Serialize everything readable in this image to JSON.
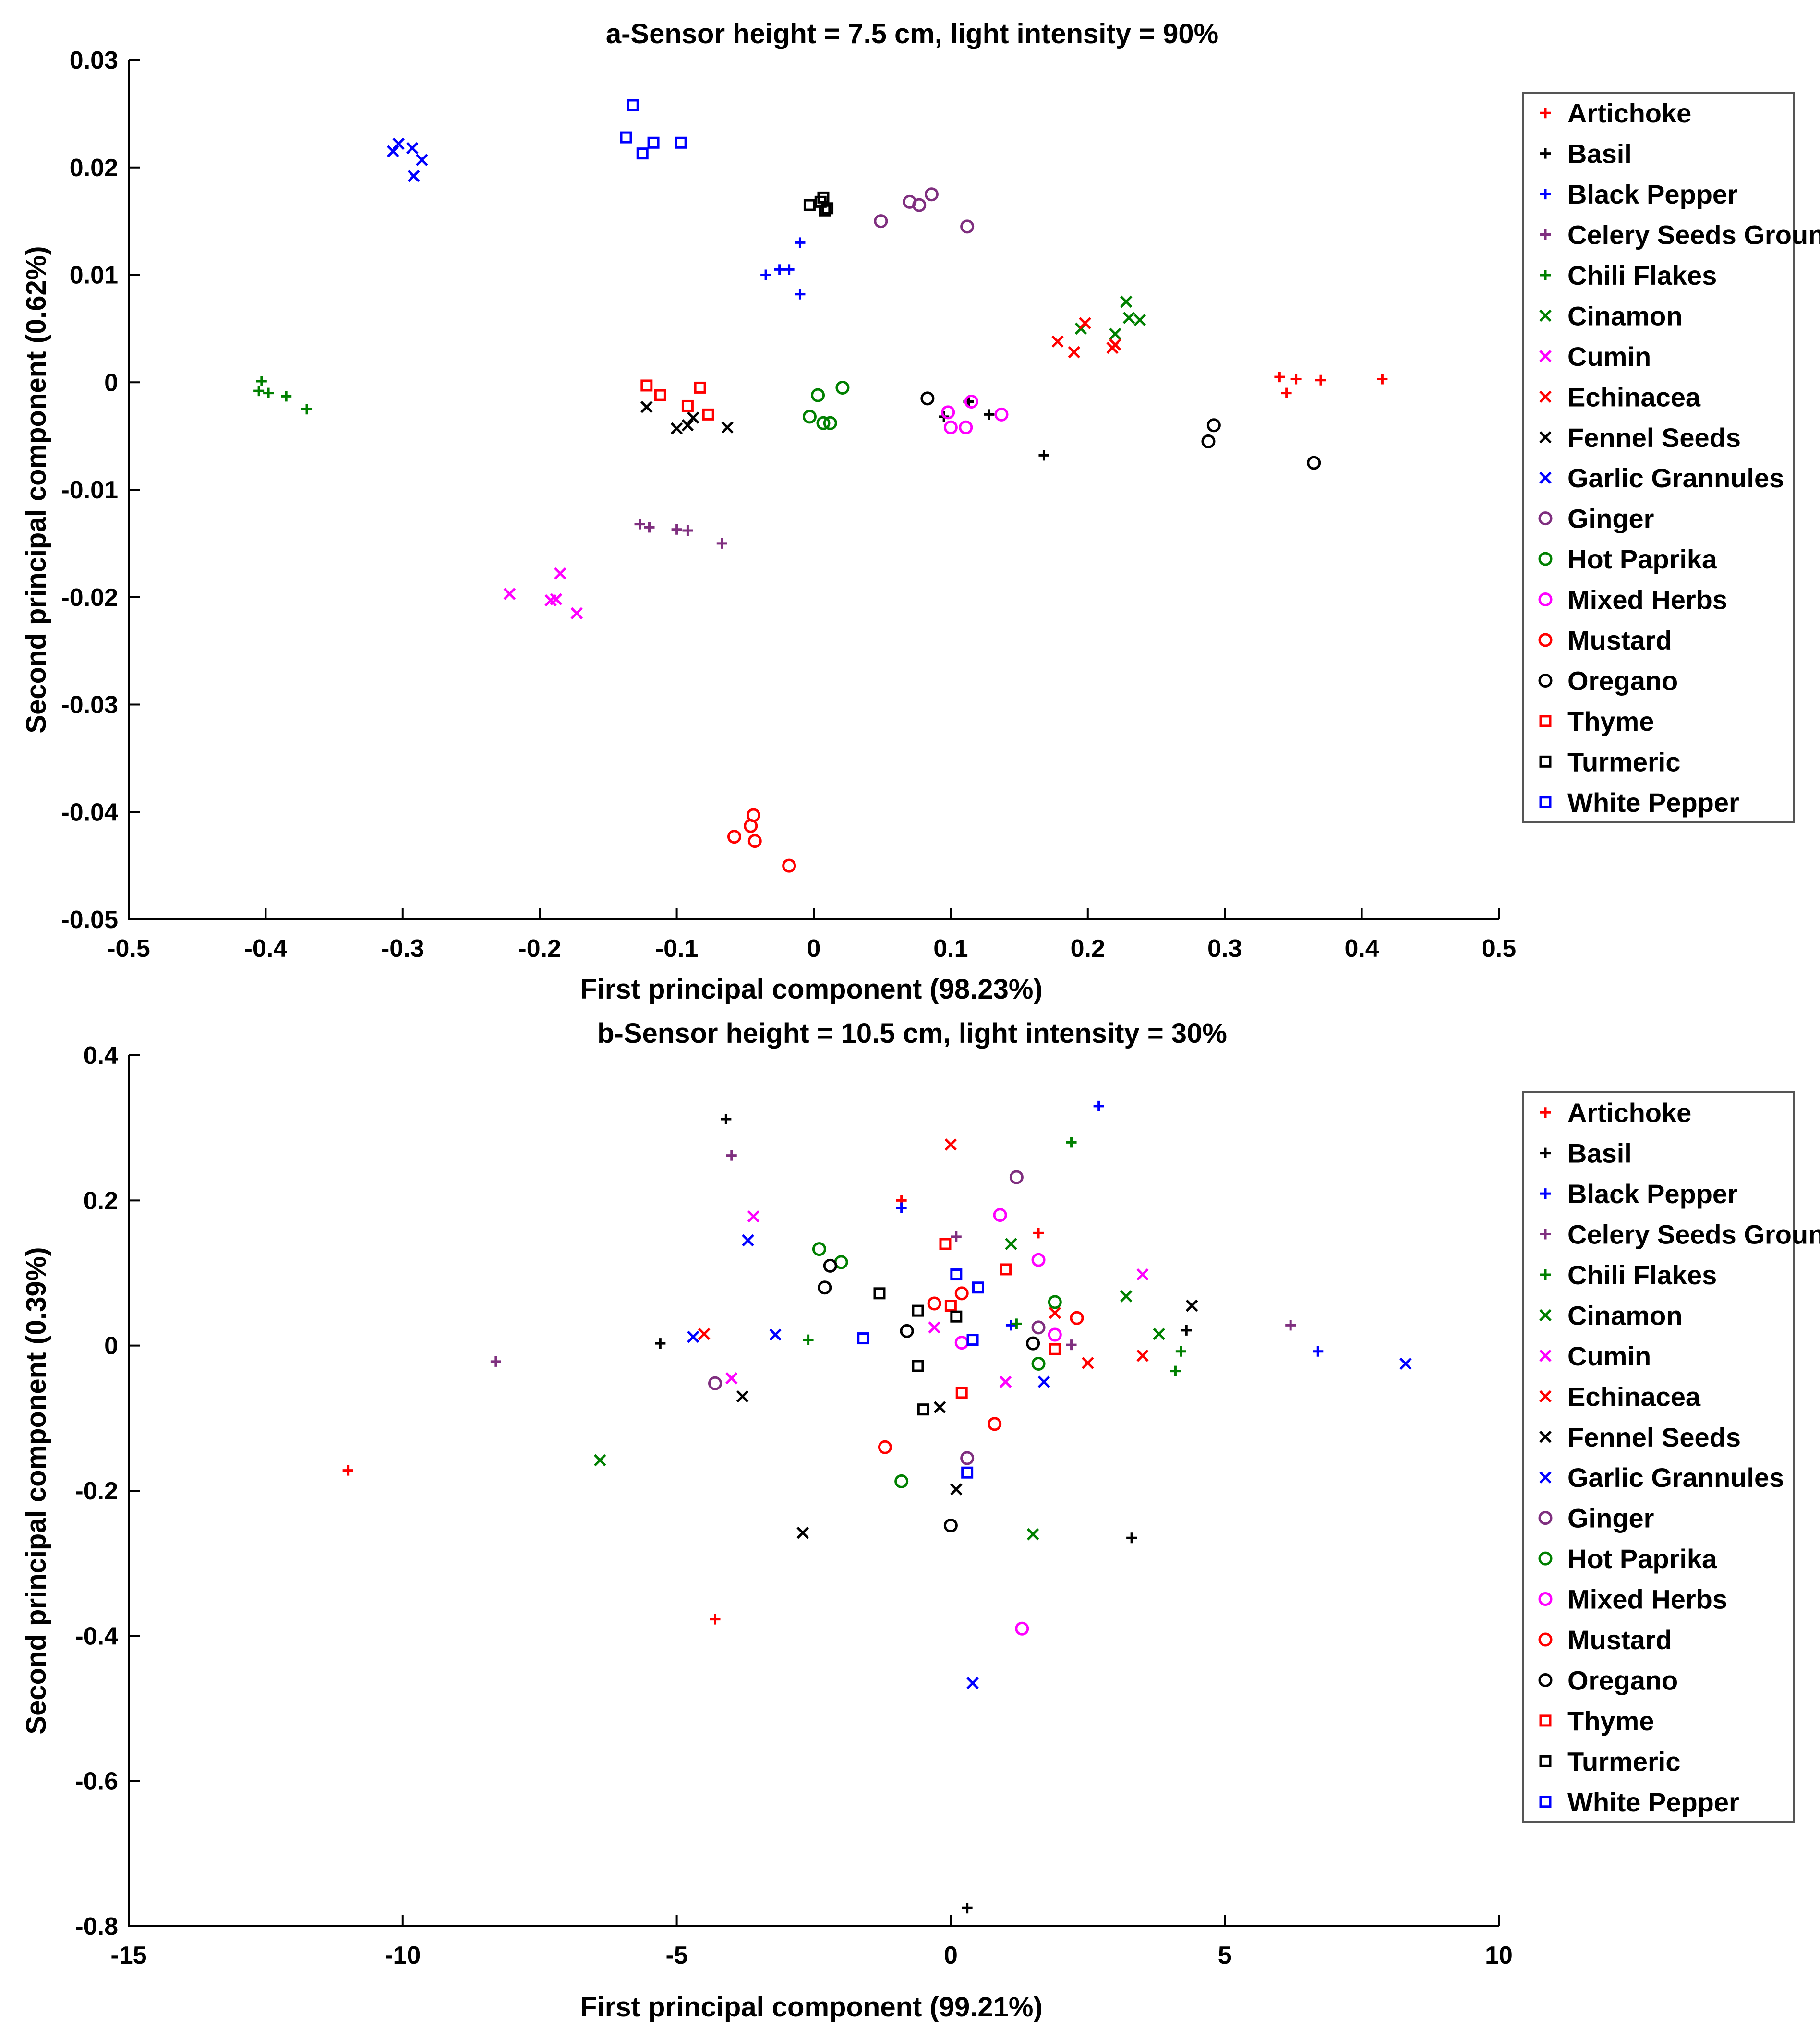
{
  "chart_data": [
    {
      "type": "scatter",
      "title": "a-Sensor height = 7.5 cm, light intensity = 90%",
      "xlabel": "First principal component (98.23%)",
      "ylabel": "Second principal component (0.62%)",
      "xlim": [
        -0.5,
        0.5
      ],
      "ylim": [
        -0.05,
        0.03
      ],
      "xticks": [
        "-0.5",
        "-0.4",
        "-0.3",
        "-0.2",
        "-0.1",
        "0",
        "0.1",
        "0.2",
        "0.3",
        "0.4",
        "0.5"
      ],
      "yticks": [
        "-0.05",
        "-0.04",
        "-0.03",
        "-0.02",
        "-0.01",
        "0",
        "0.01",
        "0.02",
        "0.03"
      ],
      "grid": false,
      "legend_position": "right",
      "series": [
        {
          "name": "Artichoke",
          "color": "#ff0000",
          "marker": "plus",
          "x": [
            0.34,
            0.345,
            0.352,
            0.37,
            0.415
          ],
          "y": [
            0.0005,
            -0.001,
            0.0003,
            0.0002,
            0.0003
          ]
        },
        {
          "name": "Basil",
          "color": "#000000",
          "marker": "plus",
          "x": [
            0.095,
            0.113,
            0.128,
            0.168
          ],
          "y": [
            -0.0032,
            -0.0018,
            -0.003,
            -0.0068
          ]
        },
        {
          "name": "Black Pepper",
          "color": "#0000ff",
          "marker": "plus",
          "x": [
            -0.035,
            -0.025,
            -0.018,
            -0.01,
            -0.01
          ],
          "y": [
            0.01,
            0.0105,
            0.0105,
            0.013,
            0.0082
          ]
        },
        {
          "name": "Celery Seeds Ground",
          "color": "#7f2f7f",
          "marker": "plus",
          "x": [
            -0.127,
            -0.12,
            -0.1,
            -0.092,
            -0.067
          ],
          "y": [
            -0.0132,
            -0.0135,
            -0.0137,
            -0.0138,
            -0.015
          ]
        },
        {
          "name": "Chili Flakes",
          "color": "#008000",
          "marker": "plus",
          "x": [
            -0.405,
            -0.403,
            -0.398,
            -0.385,
            -0.37
          ],
          "y": [
            -0.0008,
            0.0001,
            -0.001,
            -0.0013,
            -0.0025
          ]
        },
        {
          "name": "Cinamon",
          "color": "#008000",
          "marker": "x",
          "x": [
            0.195,
            0.22,
            0.228,
            0.23,
            0.238
          ],
          "y": [
            0.005,
            0.0045,
            0.0075,
            0.006,
            0.0058
          ]
        },
        {
          "name": "Cumin",
          "color": "#ff00ff",
          "marker": "x",
          "x": [
            -0.222,
            -0.192,
            -0.188,
            -0.185,
            -0.173
          ],
          "y": [
            -0.0197,
            -0.0203,
            -0.0202,
            -0.0178,
            -0.0215
          ]
        },
        {
          "name": "Echinacea",
          "color": "#ff0000",
          "marker": "x",
          "x": [
            0.178,
            0.19,
            0.198,
            0.218,
            0.22
          ],
          "y": [
            0.0038,
            0.0028,
            0.0055,
            0.0032,
            0.0035
          ]
        },
        {
          "name": "Fennel Seeds",
          "color": "#000000",
          "marker": "x",
          "x": [
            -0.122,
            -0.1,
            -0.092,
            -0.088,
            -0.063
          ],
          "y": [
            -0.0023,
            -0.0043,
            -0.004,
            -0.0033,
            -0.0042
          ]
        },
        {
          "name": "Garlic Grannules",
          "color": "#0000ff",
          "marker": "x",
          "x": [
            -0.307,
            -0.303,
            -0.293,
            -0.292,
            -0.286
          ],
          "y": [
            0.0215,
            0.0222,
            0.0218,
            0.0192,
            0.0207
          ]
        },
        {
          "name": "Ginger",
          "color": "#7f2f7f",
          "marker": "circle",
          "x": [
            0.049,
            0.07,
            0.077,
            0.086,
            0.112
          ],
          "y": [
            0.015,
            0.0168,
            0.0165,
            0.0175,
            0.0145
          ]
        },
        {
          "name": "Hot Paprika",
          "color": "#008000",
          "marker": "circle",
          "x": [
            -0.003,
            0.003,
            0.007,
            0.012,
            0.021
          ],
          "y": [
            -0.0032,
            -0.0012,
            -0.0038,
            -0.0038,
            -0.0005
          ]
        },
        {
          "name": "Mixed Herbs",
          "color": "#ff00ff",
          "marker": "circle",
          "x": [
            0.098,
            0.1,
            0.111,
            0.115,
            0.137
          ],
          "y": [
            -0.0028,
            -0.0042,
            -0.0042,
            -0.0018,
            -0.003
          ]
        },
        {
          "name": "Mustard",
          "color": "#ff0000",
          "marker": "circle",
          "x": [
            -0.058,
            -0.046,
            -0.044,
            -0.043,
            -0.018
          ],
          "y": [
            -0.0423,
            -0.0413,
            -0.0403,
            -0.0427,
            -0.045
          ]
        },
        {
          "name": "Oregano",
          "color": "#000000",
          "marker": "circle",
          "x": [
            0.083,
            0.288,
            0.292,
            0.365
          ],
          "y": [
            -0.0015,
            -0.0055,
            -0.004,
            -0.0075
          ]
        },
        {
          "name": "Thyme",
          "color": "#ff0000",
          "marker": "square",
          "x": [
            -0.122,
            -0.112,
            -0.092,
            -0.083,
            -0.077
          ],
          "y": [
            -0.0003,
            -0.0012,
            -0.0022,
            -0.0005,
            -0.003
          ]
        },
        {
          "name": "Turmeric",
          "color": "#000000",
          "marker": "square",
          "x": [
            -0.003,
            0.005,
            0.007,
            0.008,
            0.01
          ],
          "y": [
            0.0165,
            0.0168,
            0.0172,
            0.016,
            0.0162
          ]
        },
        {
          "name": "White Pepper",
          "color": "#0000ff",
          "marker": "square",
          "x": [
            -0.137,
            -0.132,
            -0.125,
            -0.117,
            -0.097
          ],
          "y": [
            0.0228,
            0.0258,
            0.0213,
            0.0223,
            0.0223
          ]
        }
      ]
    },
    {
      "type": "scatter",
      "title": "b-Sensor height = 10.5 cm, light intensity = 30%",
      "xlabel": "First principal component (99.21%)",
      "ylabel": "Second principal component (0.39%)",
      "xlim": [
        -15,
        10
      ],
      "ylim": [
        -0.8,
        0.4
      ],
      "xticks": [
        "-15",
        "-10",
        "-5",
        "0",
        "5",
        "10"
      ],
      "yticks": [
        "-0.8",
        "-0.6",
        "-0.4",
        "-0.2",
        "0",
        "0.2",
        "0.4"
      ],
      "grid": false,
      "legend_position": "right",
      "series": [
        {
          "name": "Artichoke",
          "color": "#ff0000",
          "marker": "plus",
          "x": [
            -11,
            -0.9,
            1.6,
            -4.3
          ],
          "y": [
            -0.172,
            0.2,
            0.155,
            -0.377
          ]
        },
        {
          "name": "Basil",
          "color": "#000000",
          "marker": "plus",
          "x": [
            -4.1,
            -5.3,
            0.3,
            3.3,
            4.3
          ],
          "y": [
            0.312,
            0.003,
            -0.775,
            -0.265,
            0.021
          ]
        },
        {
          "name": "Black Pepper",
          "color": "#0000ff",
          "marker": "plus",
          "x": [
            2.7,
            -0.9,
            1.1,
            6.7
          ],
          "y": [
            0.33,
            0.19,
            0.028,
            -0.008
          ]
        },
        {
          "name": "Celery Seeds Ground",
          "color": "#7f2f7f",
          "marker": "plus",
          "x": [
            -4,
            -8.3,
            0.1,
            2.2,
            6.2
          ],
          "y": [
            0.262,
            -0.022,
            0.15,
            0.001,
            0.028
          ]
        },
        {
          "name": "Chili Flakes",
          "color": "#008000",
          "marker": "plus",
          "x": [
            -2.6,
            1.2,
            2.2,
            4.1,
            4.2
          ],
          "y": [
            0.008,
            0.03,
            0.28,
            -0.035,
            -0.008
          ]
        },
        {
          "name": "Cinamon",
          "color": "#008000",
          "marker": "x",
          "x": [
            -6.4,
            1.1,
            1.5,
            3.2,
            3.8
          ],
          "y": [
            -0.158,
            0.14,
            -0.26,
            0.068,
            0.016
          ]
        },
        {
          "name": "Cumin",
          "color": "#ff00ff",
          "marker": "x",
          "x": [
            -3.6,
            -4,
            -0.3,
            1,
            3.5
          ],
          "y": [
            0.178,
            -0.045,
            0.025,
            -0.05,
            0.098
          ]
        },
        {
          "name": "Echinacea",
          "color": "#ff0000",
          "marker": "x",
          "x": [
            -4.5,
            0,
            1.9,
            2.5,
            3.5
          ],
          "y": [
            0.016,
            0.277,
            0.045,
            -0.024,
            -0.014
          ]
        },
        {
          "name": "Fennel Seeds",
          "color": "#000000",
          "marker": "x",
          "x": [
            -3.8,
            -2.7,
            -0.2,
            0.1,
            4.4
          ],
          "y": [
            -0.07,
            -0.258,
            -0.085,
            -0.198,
            0.055
          ]
        },
        {
          "name": "Garlic Grannules",
          "color": "#0000ff",
          "marker": "x",
          "x": [
            -3.7,
            -4.7,
            -3.2,
            0.4,
            1.7,
            8.3
          ],
          "y": [
            0.145,
            0.012,
            0.015,
            -0.465,
            -0.05,
            -0.025
          ]
        },
        {
          "name": "Ginger",
          "color": "#7f2f7f",
          "marker": "circle",
          "x": [
            -4.3,
            1.2,
            0.3,
            1.6
          ],
          "y": [
            -0.052,
            0.232,
            -0.155,
            0.025
          ]
        },
        {
          "name": "Hot Paprika",
          "color": "#008000",
          "marker": "circle",
          "x": [
            -2.4,
            -2,
            -0.9,
            1.9,
            1.6
          ],
          "y": [
            0.133,
            0.115,
            -0.187,
            0.06,
            -0.025
          ]
        },
        {
          "name": "Mixed Herbs",
          "color": "#ff00ff",
          "marker": "circle",
          "x": [
            0.9,
            1.6,
            1.9,
            0.2,
            1.3
          ],
          "y": [
            0.18,
            0.118,
            0.015,
            0.004,
            -0.39
          ]
        },
        {
          "name": "Mustard",
          "color": "#ff0000",
          "marker": "circle",
          "x": [
            -1.2,
            -0.3,
            0.2,
            2.3,
            0.8
          ],
          "y": [
            -0.14,
            0.058,
            0.072,
            0.038,
            -0.108
          ]
        },
        {
          "name": "Oregano",
          "color": "#000000",
          "marker": "circle",
          "x": [
            -2.2,
            -2.3,
            -0.8,
            1.5,
            0
          ],
          "y": [
            0.11,
            0.08,
            0.02,
            0.003,
            -0.248
          ]
        },
        {
          "name": "Thyme",
          "color": "#ff0000",
          "marker": "square",
          "x": [
            -0.1,
            1,
            0.2,
            0,
            1.9
          ],
          "y": [
            0.14,
            0.105,
            -0.065,
            0.055,
            -0.005
          ]
        },
        {
          "name": "Turmeric",
          "color": "#000000",
          "marker": "square",
          "x": [
            -1.3,
            -0.6,
            -0.6,
            -0.5,
            0.1
          ],
          "y": [
            0.072,
            0.048,
            -0.028,
            -0.088,
            0.04
          ]
        },
        {
          "name": "White Pepper",
          "color": "#0000ff",
          "marker": "square",
          "x": [
            -1.6,
            0.1,
            0.5,
            0.4,
            0.3
          ],
          "y": [
            0.01,
            0.098,
            0.08,
            0.008,
            -0.175
          ]
        }
      ]
    }
  ]
}
